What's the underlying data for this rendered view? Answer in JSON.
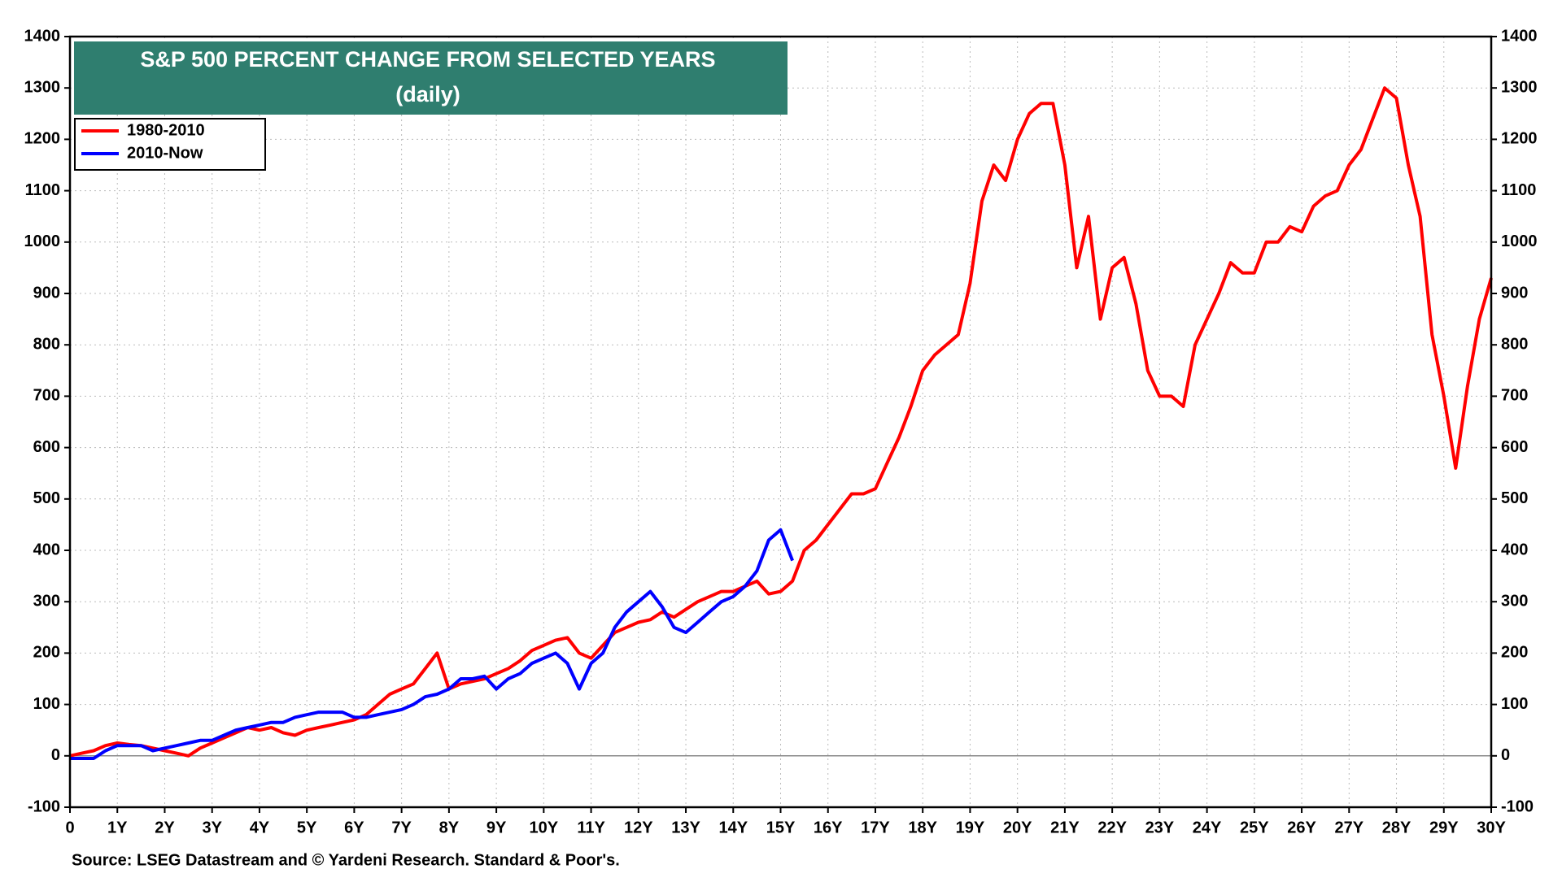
{
  "chart_data": {
    "type": "line",
    "title": "S&P 500 PERCENT CHANGE FROM SELECTED YEARS",
    "subtitle": "(daily)",
    "source": "Source: LSEG Datastream and © Yardeni Research. Standard & Poor's.",
    "x": [
      0,
      0.25,
      0.5,
      0.75,
      1,
      1.25,
      1.5,
      1.75,
      2,
      2.25,
      2.5,
      2.75,
      3,
      3.25,
      3.5,
      3.75,
      4,
      4.25,
      4.5,
      4.75,
      5,
      5.25,
      5.5,
      5.75,
      6,
      6.25,
      6.5,
      6.75,
      7,
      7.25,
      7.5,
      7.75,
      8,
      8.25,
      8.5,
      8.75,
      9,
      9.25,
      9.5,
      9.75,
      10,
      10.25,
      10.5,
      10.75,
      11,
      11.25,
      11.5,
      11.75,
      12,
      12.25,
      12.5,
      12.75,
      13,
      13.25,
      13.5,
      13.75,
      14,
      14.25,
      14.5,
      14.75,
      15,
      15.25,
      15.5,
      15.75,
      16,
      16.25,
      16.5,
      16.75,
      17,
      17.25,
      17.5,
      17.75,
      18,
      18.25,
      18.5,
      18.75,
      19,
      19.25,
      19.5,
      19.75,
      20,
      20.25,
      20.5,
      20.75,
      21,
      21.25,
      21.5,
      21.75,
      22,
      22.25,
      22.5,
      22.75,
      23,
      23.25,
      23.5,
      23.75,
      24,
      24.25,
      24.5,
      24.75,
      25,
      25.25,
      25.5,
      25.75,
      26,
      26.25,
      26.5,
      26.75,
      27,
      27.25,
      27.5,
      27.75,
      28,
      28.25,
      28.5,
      28.75,
      29,
      29.25,
      29.5,
      29.75,
      30
    ],
    "series": [
      {
        "name": "1980-2010",
        "color": "#ff0000",
        "values": [
          0,
          5,
          10,
          20,
          25,
          22,
          20,
          15,
          10,
          5,
          0,
          15,
          25,
          35,
          45,
          55,
          50,
          55,
          45,
          40,
          50,
          55,
          60,
          65,
          70,
          80,
          100,
          120,
          130,
          140,
          170,
          200,
          130,
          140,
          145,
          150,
          160,
          170,
          185,
          205,
          215,
          225,
          230,
          200,
          190,
          215,
          240,
          250,
          260,
          265,
          280,
          270,
          285,
          300,
          310,
          320,
          320,
          330,
          340,
          315,
          320,
          340,
          400,
          420,
          450,
          480,
          510,
          510,
          520,
          570,
          620,
          680,
          750,
          780,
          800,
          820,
          920,
          1080,
          1150,
          1120,
          1200,
          1250,
          1270,
          1270,
          1150,
          950,
          1050,
          850,
          950,
          970,
          880,
          750,
          700,
          700,
          680,
          800,
          850,
          900,
          960,
          940,
          940,
          1000,
          1000,
          1030,
          1020,
          1070,
          1090,
          1100,
          1150,
          1180,
          1240,
          1300,
          1280,
          1150,
          1050,
          820,
          700,
          560,
          720,
          850,
          930
        ]
      },
      {
        "name": "2010-Now",
        "color": "#0000ff",
        "values": [
          -5,
          -5,
          -5,
          10,
          20,
          20,
          20,
          10,
          15,
          20,
          25,
          30,
          30,
          40,
          50,
          55,
          60,
          65,
          65,
          75,
          80,
          85,
          85,
          85,
          75,
          75,
          80,
          85,
          90,
          100,
          115,
          120,
          130,
          150,
          150,
          155,
          130,
          150,
          160,
          180,
          190,
          200,
          180,
          130,
          180,
          200,
          250,
          280,
          300,
          320,
          290,
          250,
          240,
          260,
          280,
          300,
          310,
          330,
          360,
          420,
          440,
          380,
          null,
          null,
          null,
          null,
          null,
          null,
          null,
          null,
          null,
          null,
          null,
          null,
          null,
          null,
          null,
          null,
          null,
          null,
          null,
          null,
          null,
          null,
          null,
          null,
          null,
          null,
          null,
          null,
          null,
          null,
          null,
          null,
          null,
          null,
          null,
          null,
          null,
          null,
          null,
          null,
          null,
          null,
          null,
          null,
          null,
          null,
          null,
          null,
          null,
          null,
          null,
          null,
          null,
          null,
          null,
          null,
          null,
          null,
          null
        ]
      }
    ],
    "xlim": [
      0,
      30
    ],
    "xticks": [
      0,
      {
        "value": 1,
        "label": "1Y"
      },
      {
        "value": 2,
        "label": "2Y"
      },
      {
        "value": 3,
        "label": "3Y"
      },
      {
        "value": 4,
        "label": "4Y"
      },
      {
        "value": 5,
        "label": "5Y"
      },
      {
        "value": 6,
        "label": "6Y"
      },
      {
        "value": 7,
        "label": "7Y"
      },
      {
        "value": 8,
        "label": "8Y"
      },
      {
        "value": 9,
        "label": "9Y"
      },
      {
        "value": 10,
        "label": "10Y"
      },
      {
        "value": 11,
        "label": "11Y"
      },
      {
        "value": 12,
        "label": "12Y"
      },
      {
        "value": 13,
        "label": "13Y"
      },
      {
        "value": 14,
        "label": "14Y"
      },
      {
        "value": 15,
        "label": "15Y"
      },
      {
        "value": 16,
        "label": "16Y"
      },
      {
        "value": 17,
        "label": "17Y"
      },
      {
        "value": 18,
        "label": "18Y"
      },
      {
        "value": 19,
        "label": "19Y"
      },
      {
        "value": 20,
        "label": "20Y"
      },
      {
        "value": 21,
        "label": "21Y"
      },
      {
        "value": 22,
        "label": "22Y"
      },
      {
        "value": 23,
        "label": "23Y"
      },
      {
        "value": 24,
        "label": "24Y"
      },
      {
        "value": 25,
        "label": "25Y"
      },
      {
        "value": 26,
        "label": "26Y"
      },
      {
        "value": 27,
        "label": "27Y"
      },
      {
        "value": 28,
        "label": "28Y"
      },
      {
        "value": 29,
        "label": "29Y"
      },
      {
        "value": 30,
        "label": "30Y"
      }
    ],
    "ylim": [
      -100,
      1400
    ],
    "yticks": [
      -100,
      0,
      100,
      200,
      300,
      400,
      500,
      600,
      700,
      800,
      900,
      1000,
      1100,
      1200,
      1300,
      1400
    ],
    "grid": true,
    "legend": "upper left"
  }
}
